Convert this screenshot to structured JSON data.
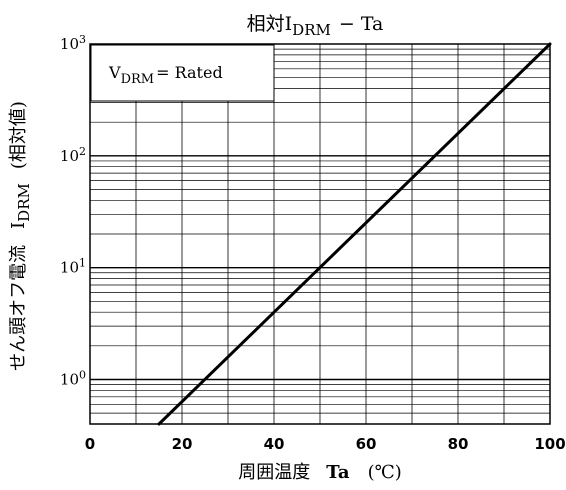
{
  "chart_data": {
    "type": "line",
    "title": {
      "prefix": "相対",
      "main": "I",
      "sub": "DRM",
      "suffix": "−  Ta"
    },
    "xlabel": {
      "main": "周囲温度",
      "symbol": "Ta",
      "unit": "(℃)"
    },
    "ylabel": {
      "main": "せん頭オフ電流",
      "symbol": "I",
      "sub": "DRM",
      "unit": "(相対値)"
    },
    "annotation": {
      "main": "V",
      "sub": "DRM",
      "suffix": "= Rated"
    },
    "x_scale": "linear",
    "y_scale": "log",
    "xlim": [
      0,
      100
    ],
    "ylim": [
      0.4,
      1000
    ],
    "x_ticks": [
      0,
      20,
      40,
      60,
      80,
      100
    ],
    "x_tick_labels": [
      "0",
      "20",
      "40",
      "60",
      "80",
      "100"
    ],
    "y_ticks": [
      1,
      10,
      100,
      1000
    ],
    "y_tick_labels": [
      {
        "base": "10",
        "exp": "0"
      },
      {
        "base": "10",
        "exp": "1"
      },
      {
        "base": "10",
        "exp": "2"
      },
      {
        "base": "10",
        "exp": "3"
      }
    ],
    "grid": true,
    "series": [
      {
        "x": [
          15,
          100
        ],
        "y": [
          0.4,
          1000
        ]
      }
    ],
    "colors": {
      "line": "#000000",
      "grid": "#000000",
      "background": "#ffffff"
    }
  }
}
